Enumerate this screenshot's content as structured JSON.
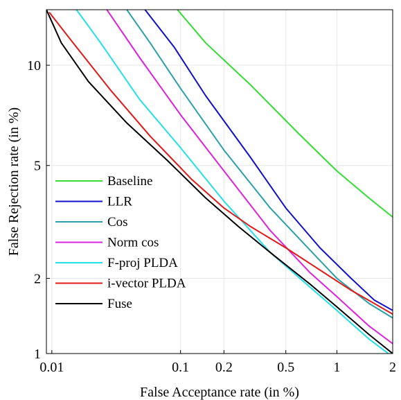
{
  "chart_data": {
    "type": "line",
    "title": "",
    "xlabel": "False Acceptance rate (in %)",
    "ylabel": "False Rejection rate (in %)",
    "xscale": "probit",
    "yscale": "probit",
    "xlim": [
      0.009,
      2.0
    ],
    "ylim": [
      1.0,
      14.0
    ],
    "grid": true,
    "legend_position": "left",
    "xticks": [
      {
        "value": 0.01,
        "label": "0.01"
      },
      {
        "value": 0.1,
        "label": "0.1"
      },
      {
        "value": 0.2,
        "label": "0.2"
      },
      {
        "value": 0.5,
        "label": "0.5"
      },
      {
        "value": 1,
        "label": "1"
      },
      {
        "value": 2,
        "label": "2"
      }
    ],
    "yticks": [
      {
        "value": 1,
        "label": "1"
      },
      {
        "value": 2,
        "label": "2"
      },
      {
        "value": 5,
        "label": "5"
      },
      {
        "value": 10,
        "label": "10"
      }
    ],
    "series": [
      {
        "name": "Baseline",
        "color": "#33dd33",
        "points": [
          [
            0.095,
            14.0
          ],
          [
            0.15,
            11.5
          ],
          [
            0.3,
            8.8
          ],
          [
            0.6,
            6.3
          ],
          [
            1.0,
            4.8
          ],
          [
            1.5,
            3.9
          ],
          [
            2.0,
            3.35
          ]
        ]
      },
      {
        "name": "LLR",
        "color": "#1010cc",
        "points": [
          [
            0.055,
            14.0
          ],
          [
            0.09,
            11.2
          ],
          [
            0.15,
            8.2
          ],
          [
            0.3,
            5.3
          ],
          [
            0.5,
            3.6
          ],
          [
            0.8,
            2.6
          ],
          [
            1.2,
            2.0
          ],
          [
            1.6,
            1.65
          ],
          [
            2.0,
            1.5
          ]
        ]
      },
      {
        "name": "Cos",
        "color": "#2aa0a8",
        "points": [
          [
            0.04,
            14.0
          ],
          [
            0.06,
            11.5
          ],
          [
            0.1,
            8.6
          ],
          [
            0.2,
            5.6
          ],
          [
            0.4,
            3.6
          ],
          [
            0.7,
            2.55
          ],
          [
            1.0,
            2.0
          ],
          [
            1.5,
            1.6
          ],
          [
            2.0,
            1.4
          ]
        ]
      },
      {
        "name": "Norm cos",
        "color": "#dd22dd",
        "points": [
          [
            0.028,
            14.0
          ],
          [
            0.05,
            10.5
          ],
          [
            0.1,
            7.2
          ],
          [
            0.2,
            4.8
          ],
          [
            0.4,
            3.0
          ],
          [
            0.7,
            2.1
          ],
          [
            1.0,
            1.7
          ],
          [
            1.5,
            1.3
          ],
          [
            2.0,
            1.1
          ]
        ]
      },
      {
        "name": "F-proj PLDA",
        "color": "#22e0e8",
        "points": [
          [
            0.016,
            14.0
          ],
          [
            0.025,
            11.5
          ],
          [
            0.05,
            8.0
          ],
          [
            0.1,
            5.7
          ],
          [
            0.2,
            3.8
          ],
          [
            0.4,
            2.5
          ],
          [
            0.7,
            1.85
          ],
          [
            1.0,
            1.5
          ],
          [
            1.5,
            1.15
          ],
          [
            1.9,
            1.0
          ]
        ]
      },
      {
        "name": "i-vector PLDA",
        "color": "#e01a1a",
        "points": [
          [
            0.0095,
            13.8
          ],
          [
            0.015,
            11.5
          ],
          [
            0.03,
            8.5
          ],
          [
            0.06,
            6.2
          ],
          [
            0.12,
            4.5
          ],
          [
            0.2,
            3.6
          ],
          [
            0.3,
            3.1
          ],
          [
            0.5,
            2.6
          ],
          [
            0.8,
            2.15
          ],
          [
            1.2,
            1.8
          ],
          [
            1.6,
            1.6
          ],
          [
            2.0,
            1.45
          ]
        ]
      },
      {
        "name": "Fuse",
        "color": "#000000",
        "points": [
          [
            0.009,
            14.0
          ],
          [
            0.012,
            11.5
          ],
          [
            0.02,
            9.0
          ],
          [
            0.04,
            6.8
          ],
          [
            0.08,
            5.2
          ],
          [
            0.15,
            3.9
          ],
          [
            0.25,
            3.1
          ],
          [
            0.4,
            2.5
          ],
          [
            0.7,
            1.9
          ],
          [
            1.0,
            1.55
          ],
          [
            1.5,
            1.2
          ],
          [
            2.0,
            1.0
          ]
        ]
      }
    ]
  }
}
